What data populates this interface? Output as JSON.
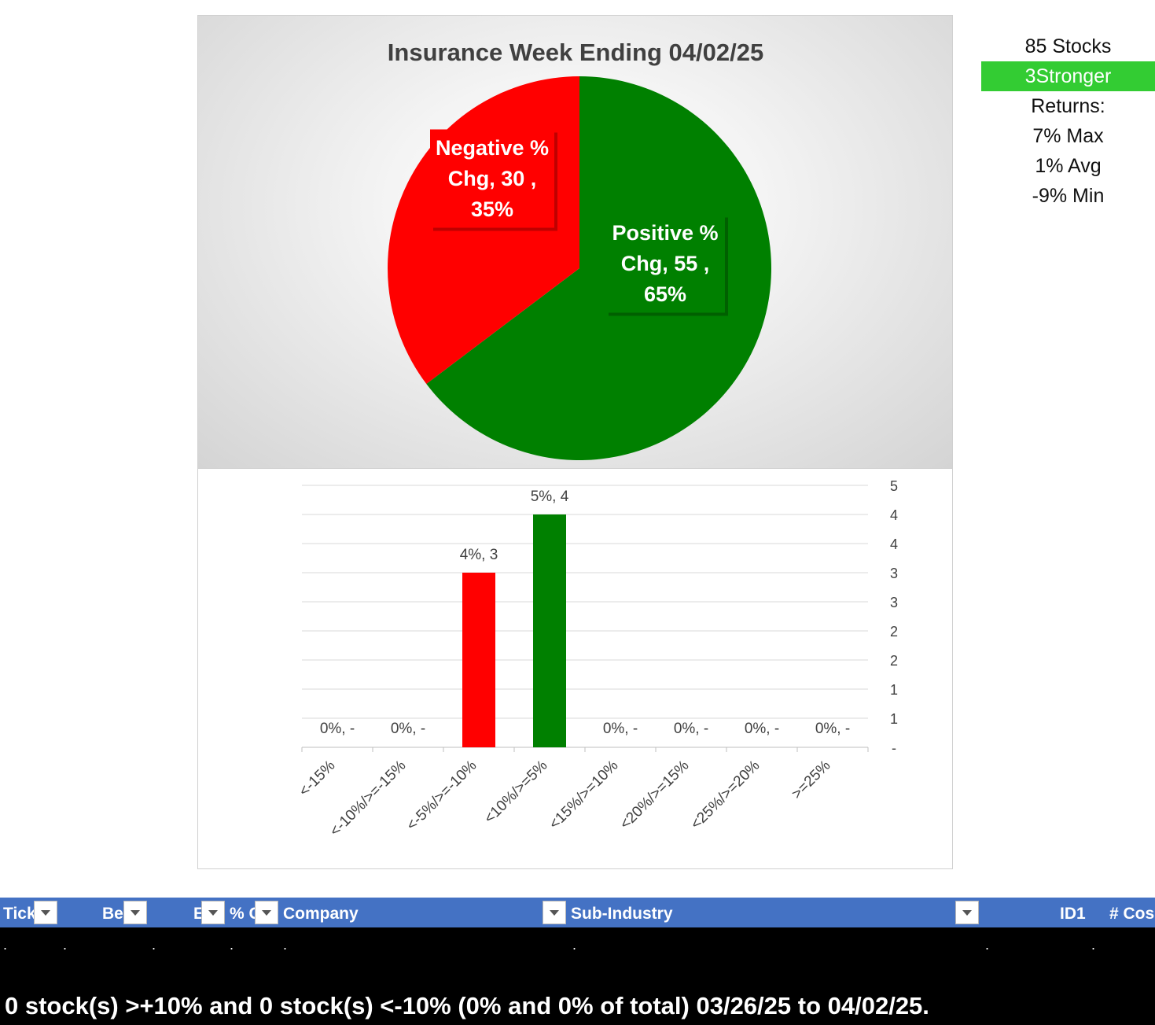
{
  "side_stats": {
    "stocks": "85 Stocks",
    "strength": "3Stronger",
    "returns_label": "Returns:",
    "max": "7% Max",
    "avg": "1% Avg",
    "min": "-9% Min"
  },
  "colors": {
    "positive": "#008000",
    "negative": "#ff0000",
    "table_header": "#4472c4",
    "stronger": "#33cc33"
  },
  "chart_data": [
    {
      "type": "pie",
      "title": "Insurance Week Ending 04/02/25",
      "slices": [
        {
          "name": "Positive % Chg",
          "value": 55,
          "percent": 65,
          "label_lines": [
            "Positive %",
            "Chg,  55 ,",
            "65%"
          ],
          "color": "#008000"
        },
        {
          "name": "Negative % Chg",
          "value": 30,
          "percent": 35,
          "label_lines": [
            "Negative %",
            "Chg,  30 ,",
            "35%"
          ],
          "color": "#ff0000"
        }
      ]
    },
    {
      "type": "bar",
      "categories": [
        "<-15%",
        "<-10%/>=-15%",
        "<-5%/>=-10%",
        "<10%/>=5%",
        "<15%/>=10%",
        "<20%/>=15%",
        "<25%/>=20%",
        ">=25%"
      ],
      "values": [
        0,
        0,
        3,
        4,
        0,
        0,
        0,
        0
      ],
      "colors": [
        "#ff0000",
        "#ff0000",
        "#ff0000",
        "#008000",
        "#008000",
        "#008000",
        "#008000",
        "#008000"
      ],
      "data_labels": [
        "0%,  -",
        "0%,  -",
        "4%,  3",
        "5%,  4",
        "0%,  -",
        "0%,  -",
        "0%,  -",
        "0%,  -"
      ],
      "y_axis_position": "right",
      "y_ticks": [
        {
          "value": 0,
          "label": "-"
        },
        {
          "value": 0.5,
          "label": "1"
        },
        {
          "value": 1,
          "label": "1"
        },
        {
          "value": 1.5,
          "label": "2"
        },
        {
          "value": 2,
          "label": "2"
        },
        {
          "value": 2.5,
          "label": "3"
        },
        {
          "value": 3,
          "label": "3"
        },
        {
          "value": 3.5,
          "label": "4"
        },
        {
          "value": 4,
          "label": "4"
        },
        {
          "value": 4.5,
          "label": "5"
        }
      ],
      "ylim": [
        0,
        4.5
      ],
      "grid": true
    }
  ],
  "table": {
    "columns": [
      "Tick",
      "Be",
      "E",
      "% C",
      "Company",
      "Sub-Industry",
      "ID1",
      "# Cos"
    ],
    "row_placeholder": ".",
    "summary": "0 stock(s) >+10% and 0 stock(s) <-10% (0% and 0% of total) 03/26/25 to 04/02/25."
  }
}
